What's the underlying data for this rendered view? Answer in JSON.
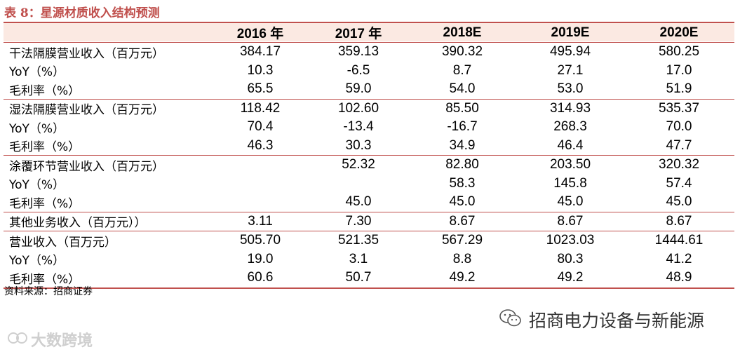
{
  "title": "表 8：星源材质收入结构预测",
  "table": {
    "header": [
      "",
      "2016 年",
      "2017 年",
      "2018E",
      "2019E",
      "2020E"
    ],
    "rows": [
      [
        "干法隔膜营业收入（百万元）",
        "384.17",
        "359.13",
        "390.32",
        "495.94",
        "580.25"
      ],
      [
        "YoY（%）",
        "10.3",
        "-6.5",
        "8.7",
        "27.1",
        "17.0"
      ],
      [
        "毛利率（%）",
        "65.5",
        "59.0",
        "54.0",
        "53.0",
        "51.9"
      ],
      [
        "湿法隔膜营业收入（百万元）",
        "118.42",
        "102.60",
        "85.50",
        "314.93",
        "535.37"
      ],
      [
        "YoY（%）",
        "70.4",
        "-13.4",
        "-16.7",
        "268.3",
        "70.0"
      ],
      [
        "毛利率（%）",
        "46.3",
        "30.3",
        "34.9",
        "46.4",
        "47.7"
      ],
      [
        "涂覆环节营业收入（百万元）",
        "",
        "52.32",
        "82.80",
        "203.50",
        "320.32"
      ],
      [
        "YoY（%）",
        "",
        "",
        "58.3",
        "145.8",
        "57.4"
      ],
      [
        "毛利率（%）",
        "",
        "45.0",
        "45.0",
        "45.0",
        "45.0"
      ],
      [
        "其他业务收入（百万元））",
        "3.11",
        "7.30",
        "8.67",
        "8.67",
        "8.67"
      ],
      [
        "营业收入（百万元）",
        "505.70",
        "521.35",
        "567.29",
        "1023.03",
        "1444.61"
      ],
      [
        "YoY（%）",
        "19.0",
        "3.1",
        "8.8",
        "80.3",
        "41.2"
      ],
      [
        "毛利率（%）",
        "60.6",
        "50.7",
        "49.2",
        "49.2",
        "48.9"
      ]
    ]
  },
  "source": "资料来源：招商证券",
  "wechat_account": "招商电力设备与新能源",
  "watermark": "大数跨境",
  "colors": {
    "accent": "#c0504d",
    "header_bg": "#fbe9e2"
  },
  "icons": {
    "wechat": "wechat-icon",
    "watermark": "bigdata-logo-icon"
  }
}
